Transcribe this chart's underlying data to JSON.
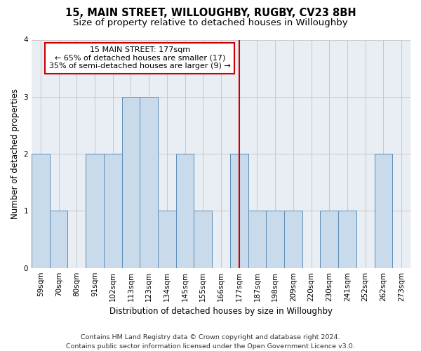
{
  "title": "15, MAIN STREET, WILLOUGHBY, RUGBY, CV23 8BH",
  "subtitle": "Size of property relative to detached houses in Willoughby",
  "xlabel": "Distribution of detached houses by size in Willoughby",
  "ylabel": "Number of detached properties",
  "categories": [
    "59sqm",
    "70sqm",
    "80sqm",
    "91sqm",
    "102sqm",
    "113sqm",
    "123sqm",
    "134sqm",
    "145sqm",
    "155sqm",
    "166sqm",
    "177sqm",
    "187sqm",
    "198sqm",
    "209sqm",
    "220sqm",
    "230sqm",
    "241sqm",
    "252sqm",
    "262sqm",
    "273sqm"
  ],
  "values": [
    2,
    1,
    0,
    2,
    2,
    3,
    3,
    1,
    2,
    1,
    0,
    2,
    1,
    1,
    1,
    0,
    1,
    1,
    0,
    2,
    0
  ],
  "bar_color": "#c9daea",
  "bar_edge_color": "#5b8db8",
  "highlight_index": 11,
  "highlight_line_color": "#cc0000",
  "annotation_line1": "15 MAIN STREET: 177sqm",
  "annotation_line2": "← 65% of detached houses are smaller (17)",
  "annotation_line3": "35% of semi-detached houses are larger (9) →",
  "annotation_box_color": "#cc0000",
  "ylim": [
    0,
    4
  ],
  "yticks": [
    0,
    1,
    2,
    3,
    4
  ],
  "grid_color": "#c8c8c8",
  "background_color": "#e8eef4",
  "footer": "Contains HM Land Registry data © Crown copyright and database right 2024.\nContains public sector information licensed under the Open Government Licence v3.0.",
  "title_fontsize": 10.5,
  "subtitle_fontsize": 9.5,
  "xlabel_fontsize": 8.5,
  "ylabel_fontsize": 8.5,
  "tick_fontsize": 7.5,
  "footer_fontsize": 6.8,
  "annotation_fontsize": 8.0
}
